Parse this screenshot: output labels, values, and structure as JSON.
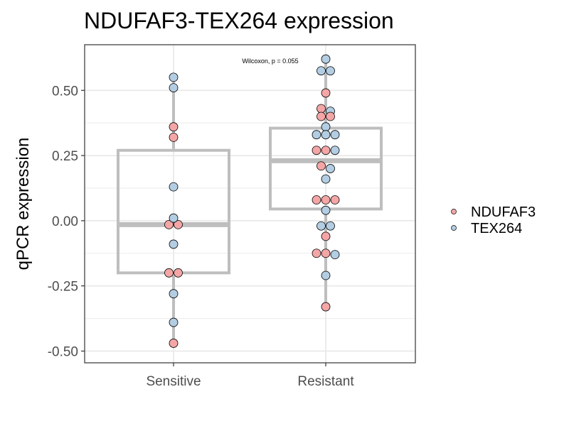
{
  "chart_data": {
    "type": "box",
    "title": "NDUFAF3-TEX264 expression",
    "xlabel": "",
    "ylabel": "qPCR expression",
    "categories": [
      "Sensitive",
      "Resistant"
    ],
    "ylim": [
      -0.545,
      0.675
    ],
    "yticks": [
      -0.5,
      -0.25,
      0.0,
      0.25,
      0.5
    ],
    "ytick_labels": [
      "-0.50",
      "-0.25",
      "0.00",
      "0.25",
      "0.50"
    ],
    "grid": true,
    "legend_position": "right",
    "annotation": "Wilcoxon, p = 0.055",
    "boxes": [
      {
        "category": "Sensitive",
        "lower_whisker": -0.47,
        "q1": -0.2,
        "median": -0.015,
        "q3": 0.27,
        "upper_whisker": 0.55
      },
      {
        "category": "Resistant",
        "lower_whisker": -0.33,
        "q1": 0.045,
        "median": 0.23,
        "q3": 0.355,
        "upper_whisker": 0.62
      }
    ],
    "series": [
      {
        "name": "NDUFAF3",
        "color": "#f4a6a6",
        "points": [
          {
            "x": "Sensitive",
            "y": 0.36
          },
          {
            "x": "Sensitive",
            "y": 0.32
          },
          {
            "x": "Sensitive",
            "y": -0.015
          },
          {
            "x": "Sensitive",
            "y": -0.015
          },
          {
            "x": "Sensitive",
            "y": -0.2
          },
          {
            "x": "Sensitive",
            "y": -0.2
          },
          {
            "x": "Sensitive",
            "y": -0.47
          },
          {
            "x": "Resistant",
            "y": 0.49
          },
          {
            "x": "Resistant",
            "y": 0.43
          },
          {
            "x": "Resistant",
            "y": 0.4
          },
          {
            "x": "Resistant",
            "y": 0.4
          },
          {
            "x": "Resistant",
            "y": 0.27
          },
          {
            "x": "Resistant",
            "y": 0.27
          },
          {
            "x": "Resistant",
            "y": 0.21
          },
          {
            "x": "Resistant",
            "y": 0.08
          },
          {
            "x": "Resistant",
            "y": 0.08
          },
          {
            "x": "Resistant",
            "y": 0.08
          },
          {
            "x": "Resistant",
            "y": -0.06
          },
          {
            "x": "Resistant",
            "y": -0.125
          },
          {
            "x": "Resistant",
            "y": -0.125
          },
          {
            "x": "Resistant",
            "y": -0.33
          }
        ]
      },
      {
        "name": "TEX264",
        "color": "#b3cde3",
        "points": [
          {
            "x": "Sensitive",
            "y": 0.55
          },
          {
            "x": "Sensitive",
            "y": 0.51
          },
          {
            "x": "Sensitive",
            "y": 0.13
          },
          {
            "x": "Sensitive",
            "y": 0.01
          },
          {
            "x": "Sensitive",
            "y": -0.09
          },
          {
            "x": "Sensitive",
            "y": -0.28
          },
          {
            "x": "Sensitive",
            "y": -0.39
          },
          {
            "x": "Resistant",
            "y": 0.62
          },
          {
            "x": "Resistant",
            "y": 0.575
          },
          {
            "x": "Resistant",
            "y": 0.575
          },
          {
            "x": "Resistant",
            "y": 0.42
          },
          {
            "x": "Resistant",
            "y": 0.36
          },
          {
            "x": "Resistant",
            "y": 0.33
          },
          {
            "x": "Resistant",
            "y": 0.33
          },
          {
            "x": "Resistant",
            "y": 0.33
          },
          {
            "x": "Resistant",
            "y": 0.27
          },
          {
            "x": "Resistant",
            "y": 0.2
          },
          {
            "x": "Resistant",
            "y": 0.16
          },
          {
            "x": "Resistant",
            "y": 0.04
          },
          {
            "x": "Resistant",
            "y": -0.02
          },
          {
            "x": "Resistant",
            "y": -0.02
          },
          {
            "x": "Resistant",
            "y": -0.13
          },
          {
            "x": "Resistant",
            "y": -0.21
          }
        ]
      }
    ],
    "colors": {
      "box_line": "#bebebe",
      "grid": "#ebebeb",
      "panel_border": "#333333",
      "point_stroke": "#000000"
    }
  }
}
